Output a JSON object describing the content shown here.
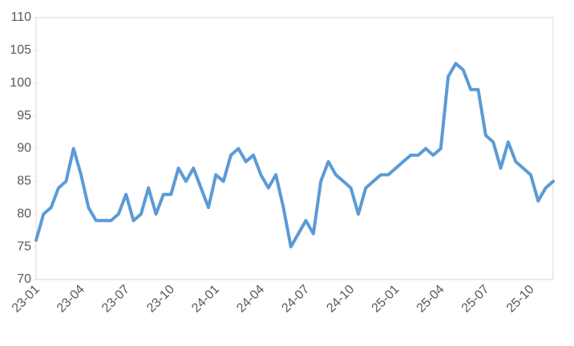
{
  "chart_data": {
    "type": "line",
    "categories": [
      "23-01",
      null,
      null,
      null,
      null,
      null,
      "23-04",
      null,
      null,
      null,
      null,
      null,
      "23-07",
      null,
      null,
      null,
      null,
      null,
      "23-10",
      null,
      null,
      null,
      null,
      null,
      "24-01",
      null,
      null,
      null,
      null,
      null,
      "24-04",
      null,
      null,
      null,
      null,
      null,
      "24-07",
      null,
      null,
      null,
      null,
      null,
      "24-10",
      null,
      null,
      null,
      null,
      null,
      "25-01",
      null,
      null,
      null,
      null,
      null,
      "25-04",
      null,
      null,
      null,
      null,
      null,
      "25-07",
      null,
      null,
      null,
      null,
      null,
      "25-10",
      null,
      null,
      null
    ],
    "series": [
      {
        "color": "#5b9bd5",
        "values": [
          76,
          80,
          81,
          84,
          85,
          90,
          86,
          81,
          79,
          79,
          79,
          80,
          83,
          79,
          80,
          84,
          80,
          83,
          83,
          87,
          85,
          87,
          84,
          81,
          86,
          85,
          89,
          90,
          88,
          89,
          86,
          84,
          86,
          81,
          75,
          77,
          79,
          77,
          85,
          88,
          86,
          85,
          84,
          80,
          84,
          85,
          86,
          86,
          87,
          88,
          89,
          89,
          90,
          89,
          90,
          101,
          103,
          102,
          99,
          99,
          92,
          91,
          87,
          91,
          88,
          87,
          86,
          82,
          84,
          85
        ]
      }
    ],
    "ylim": [
      70,
      110
    ],
    "yticks": [
      70,
      75,
      80,
      85,
      90,
      95,
      100,
      105,
      110
    ],
    "grid": false
  }
}
